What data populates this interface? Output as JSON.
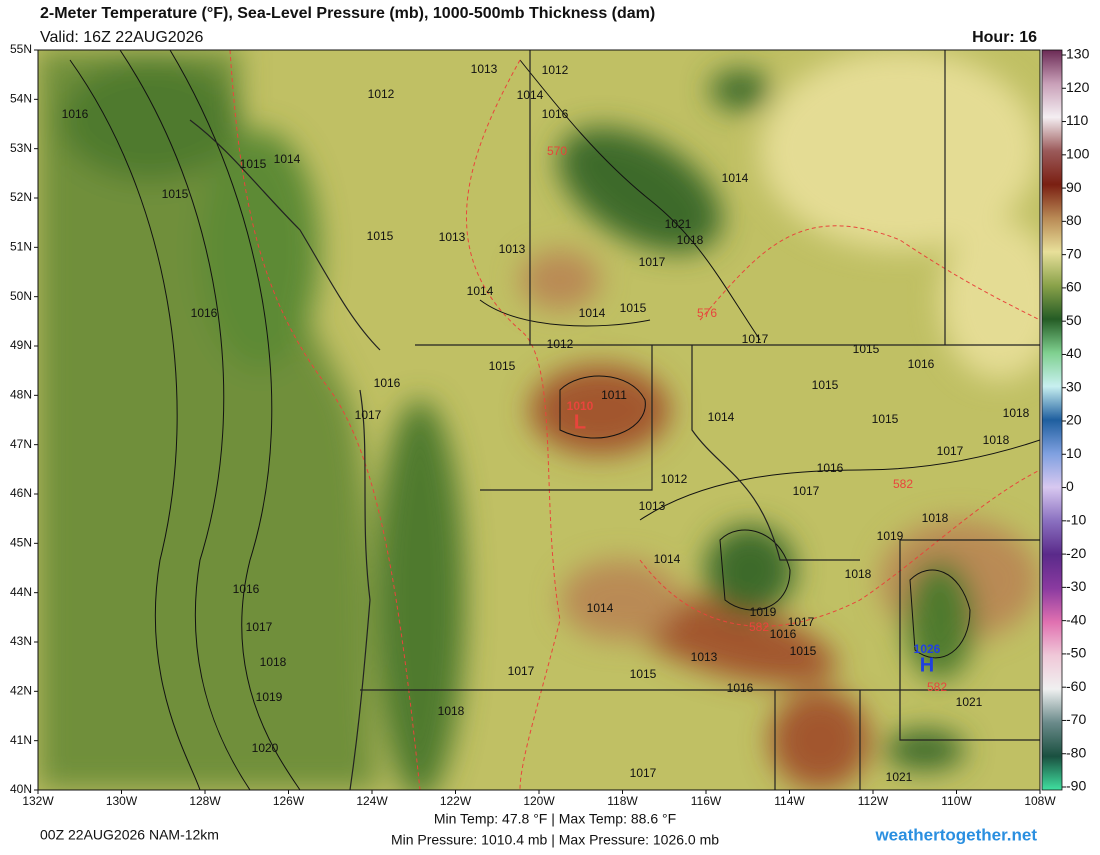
{
  "header": {
    "title": "2-Meter Temperature (°F), Sea-Level Pressure (mb), 1000-500mb Thickness (dam)",
    "valid": "Valid: 16Z 22AUG2026",
    "hour": "Hour: 16"
  },
  "map": {
    "lat_labels": [
      "55N",
      "54N",
      "53N",
      "52N",
      "51N",
      "50N",
      "49N",
      "48N",
      "47N",
      "46N",
      "45N",
      "44N",
      "43N",
      "42N",
      "41N",
      "40N"
    ],
    "lon_labels": [
      "132W",
      "130W",
      "128W",
      "126W",
      "124W",
      "122W",
      "120W",
      "118W",
      "116W",
      "114W",
      "112W",
      "110W",
      "108W"
    ],
    "isobar_labels": [
      1013,
      1012,
      1012,
      1016,
      1014,
      1016,
      1014,
      1015,
      1015,
      1014,
      1021,
      1018,
      1015,
      1013,
      1013,
      1017,
      1014,
      1016,
      1014,
      1015,
      1017,
      1012,
      1015,
      1016,
      1015,
      1011,
      1015,
      1016,
      1017,
      1014,
      1015,
      1018,
      1018,
      1017,
      1016,
      1012,
      1017,
      1013,
      1018,
      1019,
      1014,
      1018,
      1016,
      1014,
      1019,
      1017,
      1017,
      1016,
      1018,
      1013,
      1015,
      1017,
      1015,
      1016,
      1019,
      1021,
      1018,
      1020,
      1017,
      1021
    ],
    "thickness_labels": [
      570,
      576,
      582,
      582,
      582
    ],
    "low": {
      "pressure": 1010,
      "letter": "L"
    },
    "high": {
      "pressure": 1026,
      "letter": "H"
    }
  },
  "colorbar": {
    "ticks": [
      130,
      120,
      110,
      100,
      90,
      80,
      70,
      60,
      50,
      40,
      30,
      20,
      10,
      0,
      -10,
      -20,
      -30,
      -40,
      -50,
      -60,
      -70,
      -80,
      -90
    ],
    "colors": [
      "#6b2a55",
      "#c9a0b8",
      "#f4eef2",
      "#9b5a5a",
      "#7a1f12",
      "#b98a55",
      "#e8e09a",
      "#8aa24a",
      "#255c25",
      "#7fd08f",
      "#c8f0f0",
      "#1f5f9f",
      "#7fa0e0",
      "#d8c8f0",
      "#8a70c0",
      "#5a2a8a",
      "#8a3aa0",
      "#e070b0",
      "#f0c8d8",
      "#f0f0f0",
      "#6a8a8a",
      "#1a5040",
      "#40e0a0"
    ]
  },
  "footer": {
    "run": "00Z 22AUG2026 NAM-12km",
    "temps": "Min Temp:  47.8 °F | Max Temp:  88.6 °F",
    "pressures": "Min Pressure: 1010.4 mb | Max Pressure: 1026.0 mb",
    "site": "weathertogether.net"
  }
}
